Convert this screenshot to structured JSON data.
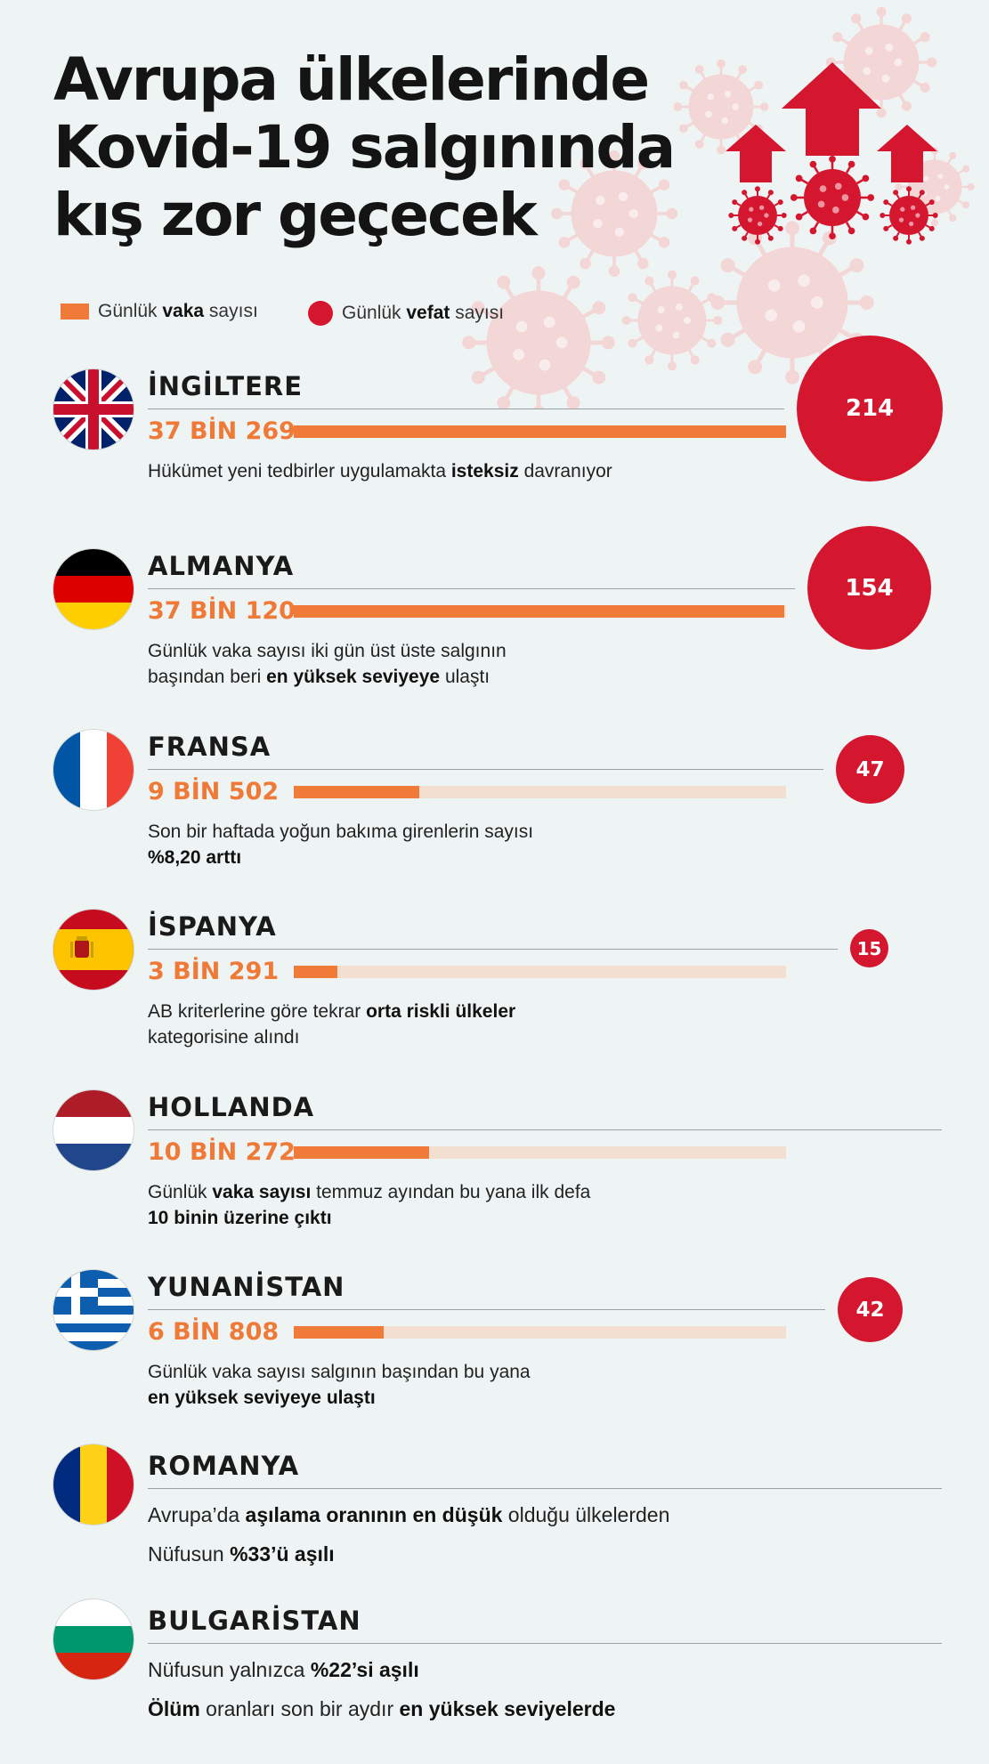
{
  "title": {
    "line1": "Avrupa ülkelerinde",
    "line2": "Kovid-19 salgınında",
    "line3": "kış zor geçecek"
  },
  "legend": {
    "cases": {
      "pre": "Günlük ",
      "bold": "vaka",
      "post": " sayısı"
    },
    "deaths": {
      "pre": "Günlük ",
      "bold": "vefat",
      "post": " sayısı"
    }
  },
  "colors": {
    "cases": "#f07a38",
    "deaths": "#d4162f",
    "track": "#f3dfd0",
    "background": "#eef4f4"
  },
  "countries": [
    {
      "name": "İNGİLTERE",
      "cases_label": "37 BİN 269",
      "cases_value": 37269,
      "deaths": "214",
      "lines": [
        [
          {
            "t": "Hükümet yeni tedbirler uygulamakta "
          },
          {
            "t": "isteksiz",
            "b": true
          },
          {
            "t": " davranıyor"
          }
        ]
      ]
    },
    {
      "name": "ALMANYA",
      "cases_label": "37 BİN 120",
      "cases_value": 37120,
      "deaths": "154",
      "lines": [
        [
          {
            "t": "Günlük vaka sayısı iki gün üst üste salgının"
          }
        ],
        [
          {
            "t": "başından beri "
          },
          {
            "t": "en yüksek seviyeye",
            "b": true
          },
          {
            "t": " ulaştı"
          }
        ]
      ]
    },
    {
      "name": "FRANSA",
      "cases_label": "9 BİN 502",
      "cases_value": 9502,
      "deaths": "47",
      "lines": [
        [
          {
            "t": "Son bir haftada yoğun bakıma girenlerin sayısı"
          }
        ],
        [
          {
            "t": "%8,20 arttı",
            "b": true
          }
        ]
      ]
    },
    {
      "name": "İSPANYA",
      "cases_label": "3 BİN 291",
      "cases_value": 3291,
      "deaths": "15",
      "lines": [
        [
          {
            "t": "AB kriterlerine göre tekrar "
          },
          {
            "t": "orta riskli ülkeler",
            "b": true
          }
        ],
        [
          {
            "t": "kategorisine alındı"
          }
        ]
      ]
    },
    {
      "name": "HOLLANDA",
      "cases_label": "10 BİN 272",
      "cases_value": 10272,
      "deaths": "",
      "lines": [
        [
          {
            "t": "Günlük "
          },
          {
            "t": "vaka sayısı",
            "b": true
          },
          {
            "t": " temmuz ayından bu yana ilk defa"
          }
        ],
        [
          {
            "t": "10 binin üzerine çıktı",
            "b": true
          }
        ]
      ]
    },
    {
      "name": "YUNANİSTAN",
      "cases_label": "6 BİN 808",
      "cases_value": 6808,
      "deaths": "42",
      "lines": [
        [
          {
            "t": "Günlük vaka sayısı salgının başından bu yana"
          }
        ],
        [
          {
            "t": "en yüksek seviyeye ulaştı",
            "b": true
          }
        ]
      ]
    },
    {
      "name": "ROMANYA",
      "cases_label": "",
      "cases_value": null,
      "deaths": "",
      "lines": [
        [
          {
            "t": "Avrupa’da "
          },
          {
            "t": "aşılama oranının en düşük",
            "b": true
          },
          {
            "t": " olduğu ülkelerden"
          }
        ],
        [
          {
            "t": "Nüfusun "
          },
          {
            "t": "%33’ü aşılı",
            "b": true
          }
        ]
      ]
    },
    {
      "name": "BULGARİSTAN",
      "cases_label": "",
      "cases_value": null,
      "deaths": "",
      "lines": [
        [
          {
            "t": "Nüfusun yalnızca "
          },
          {
            "t": "%22’si aşılı",
            "b": true
          }
        ],
        [
          {
            "t": "Ölüm",
            "b": true
          },
          {
            "t": " oranları son bir aydır "
          },
          {
            "t": "en yüksek seviyelerde",
            "b": true
          }
        ]
      ]
    }
  ]
}
